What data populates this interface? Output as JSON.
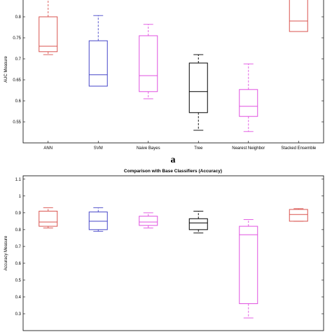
{
  "chart_data": [
    {
      "type": "box",
      "title": "",
      "panel_label": "a",
      "ylabel": "AUC Measure",
      "ylim": [
        0.5,
        0.85
      ],
      "yticks": [
        0.55,
        0.6,
        0.65,
        0.7,
        0.75,
        0.8
      ],
      "categories": [
        "ANN",
        "SVM",
        "Naive Bayes",
        "Tree",
        "Nearest Neighbor",
        "Stacked Ensemble"
      ],
      "colors": [
        "#d9534f",
        "#4646c8",
        "#e050e0",
        "#000000",
        "#e050e0",
        "#d9534f"
      ],
      "boxes": [
        {
          "whisker_low": 0.71,
          "q1": 0.717,
          "median": 0.73,
          "q3": 0.8,
          "whisker_high": 0.845
        },
        {
          "whisker_low": 0.635,
          "q1": 0.635,
          "median": 0.662,
          "q3": 0.743,
          "whisker_high": 0.803
        },
        {
          "whisker_low": 0.605,
          "q1": 0.622,
          "median": 0.66,
          "q3": 0.755,
          "whisker_high": 0.782
        },
        {
          "whisker_low": 0.53,
          "q1": 0.572,
          "median": 0.622,
          "q3": 0.69,
          "whisker_high": 0.71
        },
        {
          "whisker_low": 0.527,
          "q1": 0.563,
          "median": 0.587,
          "q3": 0.627,
          "whisker_high": 0.688
        },
        {
          "whisker_low": 0.765,
          "q1": 0.765,
          "median": 0.79,
          "q3": 0.85,
          "whisker_high": 0.86
        }
      ]
    },
    {
      "type": "box",
      "title": "Comparison with Base Classifiers (Accuracy)",
      "ylabel": "Accuracy Measure",
      "ylim": [
        0.2,
        1.12
      ],
      "yticks": [
        0.3,
        0.4,
        0.5,
        0.6,
        0.7,
        0.8,
        0.9,
        1,
        1.1
      ],
      "ytick_labels": [
        "0.3",
        "0.4",
        "0.5",
        "0.6",
        "0.7",
        "0.8",
        "0.9",
        "1",
        "1.1"
      ],
      "categories": [
        "ANN",
        "SVM",
        "Naive Bayes",
        "Tree",
        "Nearest Neighbor",
        "Stacked Ensemble"
      ],
      "colors": [
        "#d9534f",
        "#4646c8",
        "#e050e0",
        "#000000",
        "#e050e0",
        "#d9534f"
      ],
      "boxes": [
        {
          "whisker_low": 0.81,
          "q1": 0.82,
          "median": 0.845,
          "q3": 0.91,
          "whisker_high": 0.93
        },
        {
          "whisker_low": 0.79,
          "q1": 0.8,
          "median": 0.85,
          "q3": 0.905,
          "whisker_high": 0.93
        },
        {
          "whisker_low": 0.81,
          "q1": 0.825,
          "median": 0.845,
          "q3": 0.88,
          "whisker_high": 0.9
        },
        {
          "whisker_low": 0.78,
          "q1": 0.8,
          "median": 0.84,
          "q3": 0.865,
          "whisker_high": 0.91
        },
        {
          "whisker_low": 0.275,
          "q1": 0.36,
          "median": 0.77,
          "q3": 0.82,
          "whisker_high": 0.86
        },
        {
          "whisker_low": 0.85,
          "q1": 0.85,
          "median": 0.89,
          "q3": 0.92,
          "whisker_high": 0.925
        }
      ]
    }
  ]
}
